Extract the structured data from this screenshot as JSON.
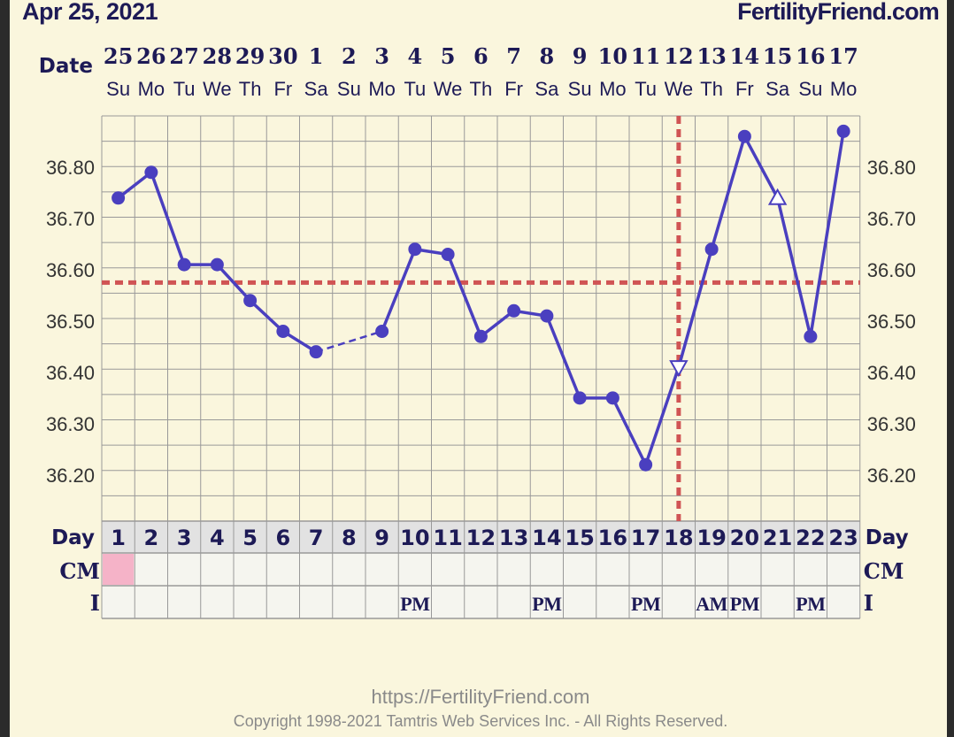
{
  "header": {
    "date_label": "Apr 25, 2021",
    "site_label": "FertilityFriend.com"
  },
  "footer": {
    "url": "https://FertilityFriend.com",
    "copyright": "Copyright 1998-2021 Tamtris Web Services Inc. - All Rights Reserved."
  },
  "colors": {
    "background": "#faf6dd",
    "grid": "#999999",
    "series": "#4a3fbf",
    "coverline": "#d05454",
    "text": "#1d1a56",
    "cm_fertile": "#f5b3c8",
    "row_bg": "#e2e2e2",
    "cell_bg": "#f5f5ef"
  },
  "chart_data": {
    "type": "line",
    "date_row_label": "Date",
    "day_row_label": "Day",
    "cm_row_label": "CM",
    "i_row_label": "I",
    "dates": [
      "25",
      "26",
      "27",
      "28",
      "29",
      "30",
      "1",
      "2",
      "3",
      "4",
      "5",
      "6",
      "7",
      "8",
      "9",
      "10",
      "11",
      "12",
      "13",
      "14",
      "15",
      "16",
      "17"
    ],
    "weekdays": [
      "Su",
      "Mo",
      "Tu",
      "We",
      "Th",
      "Fr",
      "Sa",
      "Su",
      "Mo",
      "Tu",
      "We",
      "Th",
      "Fr",
      "Sa",
      "Su",
      "Mo",
      "Tu",
      "We",
      "Th",
      "Fr",
      "Sa",
      "Su",
      "Mo"
    ],
    "days": [
      "1",
      "2",
      "3",
      "4",
      "5",
      "6",
      "7",
      "8",
      "9",
      "10",
      "11",
      "12",
      "13",
      "14",
      "15",
      "16",
      "17",
      "18",
      "19",
      "20",
      "21",
      "22",
      "23"
    ],
    "yticks": [
      "36.80",
      "36.70",
      "36.60",
      "36.50",
      "36.40",
      "36.30",
      "36.20"
    ],
    "ylim": [
      36.11,
      36.9
    ],
    "values": [
      36.74,
      36.79,
      36.61,
      36.61,
      36.54,
      36.48,
      36.44,
      null,
      36.48,
      36.64,
      36.63,
      36.47,
      36.52,
      36.51,
      36.35,
      36.35,
      36.22,
      36.41,
      36.64,
      36.86,
      36.74,
      36.47,
      36.87
    ],
    "markers": [
      "circle",
      "circle",
      "circle",
      "circle",
      "circle",
      "circle",
      "circle",
      null,
      "circle",
      "circle",
      "circle",
      "circle",
      "circle",
      "circle",
      "circle",
      "circle",
      "circle",
      "triangle-down-open",
      "circle",
      "circle",
      "triangle-up-open",
      "circle",
      "circle"
    ],
    "dashed_segments": [
      [
        7,
        9
      ]
    ],
    "coverline": 36.575,
    "ovulation_day": 18,
    "cm": [
      "fertile",
      "",
      "",
      "",
      "",
      "",
      "",
      "",
      "",
      "",
      "",
      "",
      "",
      "",
      "",
      "",
      "",
      "",
      "",
      "",
      "",
      "",
      ""
    ],
    "intercourse": [
      "",
      "",
      "",
      "",
      "",
      "",
      "",
      "",
      "",
      "PM",
      "",
      "",
      "",
      "PM",
      "",
      "",
      "PM",
      "",
      "AM",
      "PM",
      "",
      "PM",
      ""
    ]
  }
}
